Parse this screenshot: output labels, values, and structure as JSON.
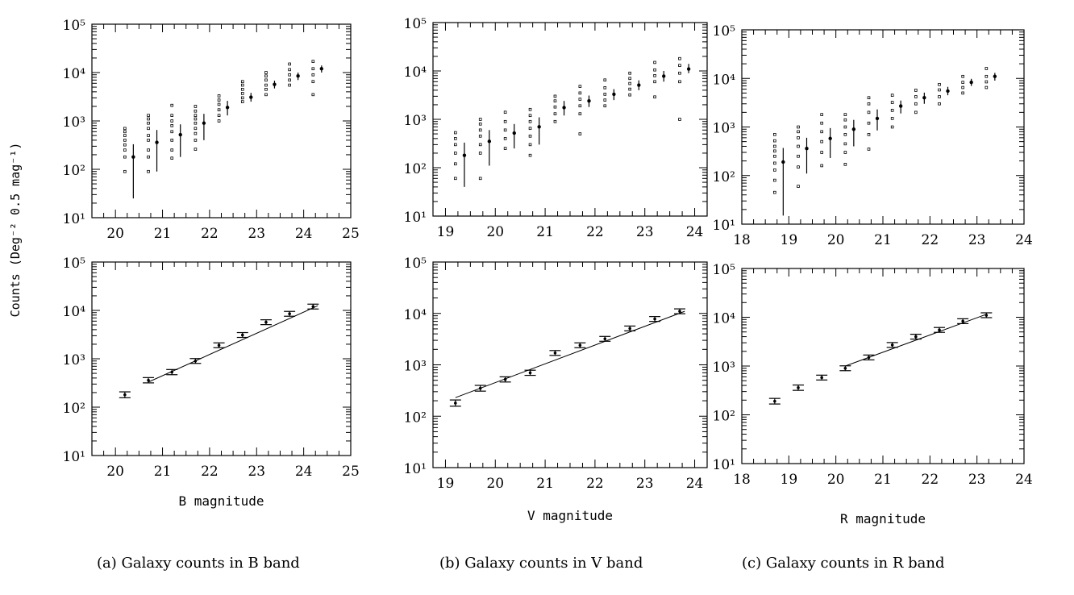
{
  "y_axis_label": "Counts (Deg⁻² 0.5 mag⁻¹)",
  "y_tick_labels": [
    "10¹",
    "10²",
    "10³",
    "10⁴",
    "10⁵"
  ],
  "panels": [
    {
      "id": "B",
      "caption": "(a) Galaxy counts in B band",
      "xlabel": "B magnitude",
      "x_tick_labels": [
        "20",
        "21",
        "22",
        "23",
        "24",
        "25"
      ]
    },
    {
      "id": "V",
      "caption": "(b) Galaxy counts in V band",
      "xlabel": "V magnitude",
      "x_tick_labels": [
        "19",
        "20",
        "21",
        "22",
        "23",
        "24"
      ]
    },
    {
      "id": "R",
      "caption": "(c) Galaxy counts in R band",
      "xlabel": "R magnitude",
      "x_tick_labels": [
        "18",
        "19",
        "20",
        "21",
        "22",
        "23",
        "24"
      ]
    }
  ],
  "chart_data": [
    {
      "type": "scatter",
      "panel": "a-top",
      "xlim": [
        19.5,
        25
      ],
      "ylim": [
        10,
        100000
      ],
      "yscale": "log",
      "scatter_columns": [
        {
          "x": 20.2,
          "y": [
            90,
            180,
            250,
            320,
            400,
            500,
            600,
            700
          ]
        },
        {
          "x": 20.7,
          "y": [
            90,
            180,
            250,
            400,
            500,
            700,
            900,
            1100,
            1300
          ]
        },
        {
          "x": 21.2,
          "y": [
            170,
            250,
            400,
            600,
            800,
            1000,
            1300,
            2100
          ]
        },
        {
          "x": 21.7,
          "y": [
            260,
            400,
            550,
            700,
            900,
            1100,
            1300,
            1600,
            2000
          ]
        },
        {
          "x": 22.2,
          "y": [
            1000,
            1300,
            1700,
            2200,
            2700,
            3300
          ]
        },
        {
          "x": 22.7,
          "y": [
            2500,
            3000,
            3700,
            4500,
            5500,
            6500
          ]
        },
        {
          "x": 23.2,
          "y": [
            3500,
            4500,
            5500,
            7000,
            8500,
            10000
          ]
        },
        {
          "x": 23.7,
          "y": [
            5500,
            7000,
            9000,
            11500,
            15000
          ]
        },
        {
          "x": 24.2,
          "y": [
            3500,
            6500,
            9000,
            12000,
            17000
          ]
        }
      ],
      "mean_points": [
        {
          "x": 20.38,
          "y": 180,
          "ylo": 25,
          "yhi": 330
        },
        {
          "x": 20.88,
          "y": 360,
          "ylo": 90,
          "yhi": 650
        },
        {
          "x": 21.38,
          "y": 520,
          "ylo": 180,
          "yhi": 850
        },
        {
          "x": 21.88,
          "y": 900,
          "ylo": 400,
          "yhi": 1400
        },
        {
          "x": 22.38,
          "y": 1900,
          "ylo": 1300,
          "yhi": 2600
        },
        {
          "x": 22.88,
          "y": 3100,
          "ylo": 2500,
          "yhi": 3800
        },
        {
          "x": 23.38,
          "y": 5700,
          "ylo": 4700,
          "yhi": 6800
        },
        {
          "x": 23.88,
          "y": 8500,
          "ylo": 7000,
          "yhi": 10000
        },
        {
          "x": 24.38,
          "y": 12000,
          "ylo": 10000,
          "yhi": 14000
        }
      ]
    },
    {
      "type": "line",
      "panel": "a-bottom",
      "xlim": [
        19.5,
        25
      ],
      "ylim": [
        10,
        100000
      ],
      "yscale": "log",
      "points": [
        {
          "x": 20.2,
          "y": 180,
          "err": 25
        },
        {
          "x": 20.7,
          "y": 360,
          "err": 45
        },
        {
          "x": 21.2,
          "y": 530,
          "err": 65
        },
        {
          "x": 21.7,
          "y": 900,
          "err": 100
        },
        {
          "x": 22.2,
          "y": 1900,
          "err": 160
        },
        {
          "x": 22.7,
          "y": 3100,
          "err": 250
        },
        {
          "x": 23.2,
          "y": 5700,
          "err": 450
        },
        {
          "x": 23.7,
          "y": 8500,
          "err": 600
        },
        {
          "x": 24.2,
          "y": 12000,
          "err": 800
        }
      ],
      "fit": [
        {
          "x": 20.7,
          "y": 330
        },
        {
          "x": 24.3,
          "y": 12500
        }
      ]
    },
    {
      "type": "scatter",
      "panel": "b-top",
      "xlim": [
        18.75,
        24.25
      ],
      "ylim": [
        10,
        100000
      ],
      "yscale": "log",
      "scatter_columns": [
        {
          "x": 19.2,
          "y": [
            60,
            120,
            200,
            300,
            400,
            530
          ]
        },
        {
          "x": 19.7,
          "y": [
            60,
            200,
            300,
            450,
            600,
            800,
            1000
          ]
        },
        {
          "x": 20.2,
          "y": [
            250,
            400,
            600,
            900,
            1400
          ]
        },
        {
          "x": 20.7,
          "y": [
            180,
            300,
            450,
            650,
            900,
            1200,
            1600
          ]
        },
        {
          "x": 21.2,
          "y": [
            900,
            1300,
            1800,
            2400,
            3000
          ]
        },
        {
          "x": 21.7,
          "y": [
            500,
            1300,
            1900,
            2600,
            3500,
            4800
          ]
        },
        {
          "x": 22.2,
          "y": [
            1900,
            2500,
            3300,
            4500,
            6500
          ]
        },
        {
          "x": 22.7,
          "y": [
            3200,
            4200,
            5500,
            7000,
            9000
          ]
        },
        {
          "x": 23.2,
          "y": [
            2900,
            6000,
            8000,
            10500,
            15000
          ]
        },
        {
          "x": 23.7,
          "y": [
            1000,
            6000,
            9000,
            13000,
            18000
          ]
        }
      ],
      "mean_points": [
        {
          "x": 19.38,
          "y": 180,
          "ylo": 40,
          "yhi": 330
        },
        {
          "x": 19.88,
          "y": 350,
          "ylo": 110,
          "yhi": 600
        },
        {
          "x": 20.38,
          "y": 520,
          "ylo": 250,
          "yhi": 800
        },
        {
          "x": 20.88,
          "y": 700,
          "ylo": 300,
          "yhi": 1100
        },
        {
          "x": 21.38,
          "y": 1750,
          "ylo": 1200,
          "yhi": 2400
        },
        {
          "x": 21.88,
          "y": 2400,
          "ylo": 1800,
          "yhi": 3100
        },
        {
          "x": 22.38,
          "y": 3300,
          "ylo": 2500,
          "yhi": 4200
        },
        {
          "x": 22.88,
          "y": 5100,
          "ylo": 4000,
          "yhi": 6400
        },
        {
          "x": 23.38,
          "y": 7800,
          "ylo": 6000,
          "yhi": 10000
        },
        {
          "x": 23.88,
          "y": 11000,
          "ylo": 9000,
          "yhi": 14000
        }
      ]
    },
    {
      "type": "line",
      "panel": "b-bottom",
      "xlim": [
        18.75,
        24.25
      ],
      "ylim": [
        10,
        100000
      ],
      "yscale": "log",
      "points": [
        {
          "x": 19.2,
          "y": 180,
          "err": 25
        },
        {
          "x": 19.7,
          "y": 350,
          "err": 45
        },
        {
          "x": 20.2,
          "y": 520,
          "err": 60
        },
        {
          "x": 20.7,
          "y": 700,
          "err": 80
        },
        {
          "x": 21.2,
          "y": 1700,
          "err": 150
        },
        {
          "x": 21.7,
          "y": 2400,
          "err": 200
        },
        {
          "x": 22.2,
          "y": 3200,
          "err": 250
        },
        {
          "x": 22.7,
          "y": 5100,
          "err": 350
        },
        {
          "x": 23.2,
          "y": 7800,
          "err": 500
        },
        {
          "x": 23.7,
          "y": 11000,
          "err": 700
        }
      ],
      "fit": [
        {
          "x": 19.2,
          "y": 230
        },
        {
          "x": 23.8,
          "y": 11000
        }
      ]
    },
    {
      "type": "scatter",
      "panel": "c-top",
      "xlim": [
        18,
        24
      ],
      "ylim": [
        10,
        100000
      ],
      "yscale": "log",
      "scatter_columns": [
        {
          "x": 18.7,
          "y": [
            45,
            80,
            130,
            180,
            250,
            320,
            400,
            520,
            700
          ]
        },
        {
          "x": 19.2,
          "y": [
            60,
            150,
            250,
            400,
            600,
            800,
            1000
          ]
        },
        {
          "x": 19.7,
          "y": [
            160,
            300,
            500,
            800,
            1200,
            1800
          ]
        },
        {
          "x": 20.2,
          "y": [
            170,
            300,
            450,
            700,
            1000,
            1400,
            1800
          ]
        },
        {
          "x": 20.7,
          "y": [
            350,
            700,
            1200,
            2000,
            3000,
            4000
          ]
        },
        {
          "x": 21.2,
          "y": [
            1000,
            1500,
            2200,
            3200,
            4500
          ]
        },
        {
          "x": 21.7,
          "y": [
            2000,
            3000,
            4200,
            5700
          ]
        },
        {
          "x": 22.2,
          "y": [
            3000,
            4200,
            5800,
            7500
          ]
        },
        {
          "x": 22.7,
          "y": [
            5000,
            6500,
            8300,
            11000
          ]
        },
        {
          "x": 23.2,
          "y": [
            6500,
            8500,
            11000,
            16000
          ]
        }
      ],
      "mean_points": [
        {
          "x": 18.88,
          "y": 190,
          "ylo": 15,
          "yhi": 370
        },
        {
          "x": 19.38,
          "y": 360,
          "ylo": 110,
          "yhi": 600
        },
        {
          "x": 19.88,
          "y": 580,
          "ylo": 230,
          "yhi": 950
        },
        {
          "x": 20.38,
          "y": 900,
          "ylo": 400,
          "yhi": 1400
        },
        {
          "x": 20.88,
          "y": 1500,
          "ylo": 850,
          "yhi": 2300
        },
        {
          "x": 21.38,
          "y": 2700,
          "ylo": 1900,
          "yhi": 3500
        },
        {
          "x": 21.88,
          "y": 4000,
          "ylo": 3000,
          "yhi": 5100
        },
        {
          "x": 22.38,
          "y": 5500,
          "ylo": 4500,
          "yhi": 6700
        },
        {
          "x": 22.88,
          "y": 8300,
          "ylo": 7000,
          "yhi": 9800
        },
        {
          "x": 23.38,
          "y": 11000,
          "ylo": 9000,
          "yhi": 13000
        }
      ]
    },
    {
      "type": "line",
      "panel": "c-bottom",
      "xlim": [
        18,
        24
      ],
      "ylim": [
        10,
        100000
      ],
      "yscale": "log",
      "points": [
        {
          "x": 18.7,
          "y": 190,
          "err": 25
        },
        {
          "x": 19.2,
          "y": 360,
          "err": 45
        },
        {
          "x": 19.7,
          "y": 580,
          "err": 55
        },
        {
          "x": 20.2,
          "y": 900,
          "err": 80
        },
        {
          "x": 20.7,
          "y": 1500,
          "err": 120
        },
        {
          "x": 21.2,
          "y": 2700,
          "err": 200
        },
        {
          "x": 21.7,
          "y": 4000,
          "err": 250
        },
        {
          "x": 22.2,
          "y": 5500,
          "err": 350
        },
        {
          "x": 22.7,
          "y": 8300,
          "err": 500
        },
        {
          "x": 23.2,
          "y": 11000,
          "err": 700
        }
      ],
      "fit": [
        {
          "x": 20.2,
          "y": 1000
        },
        {
          "x": 23.2,
          "y": 11500
        }
      ]
    }
  ]
}
